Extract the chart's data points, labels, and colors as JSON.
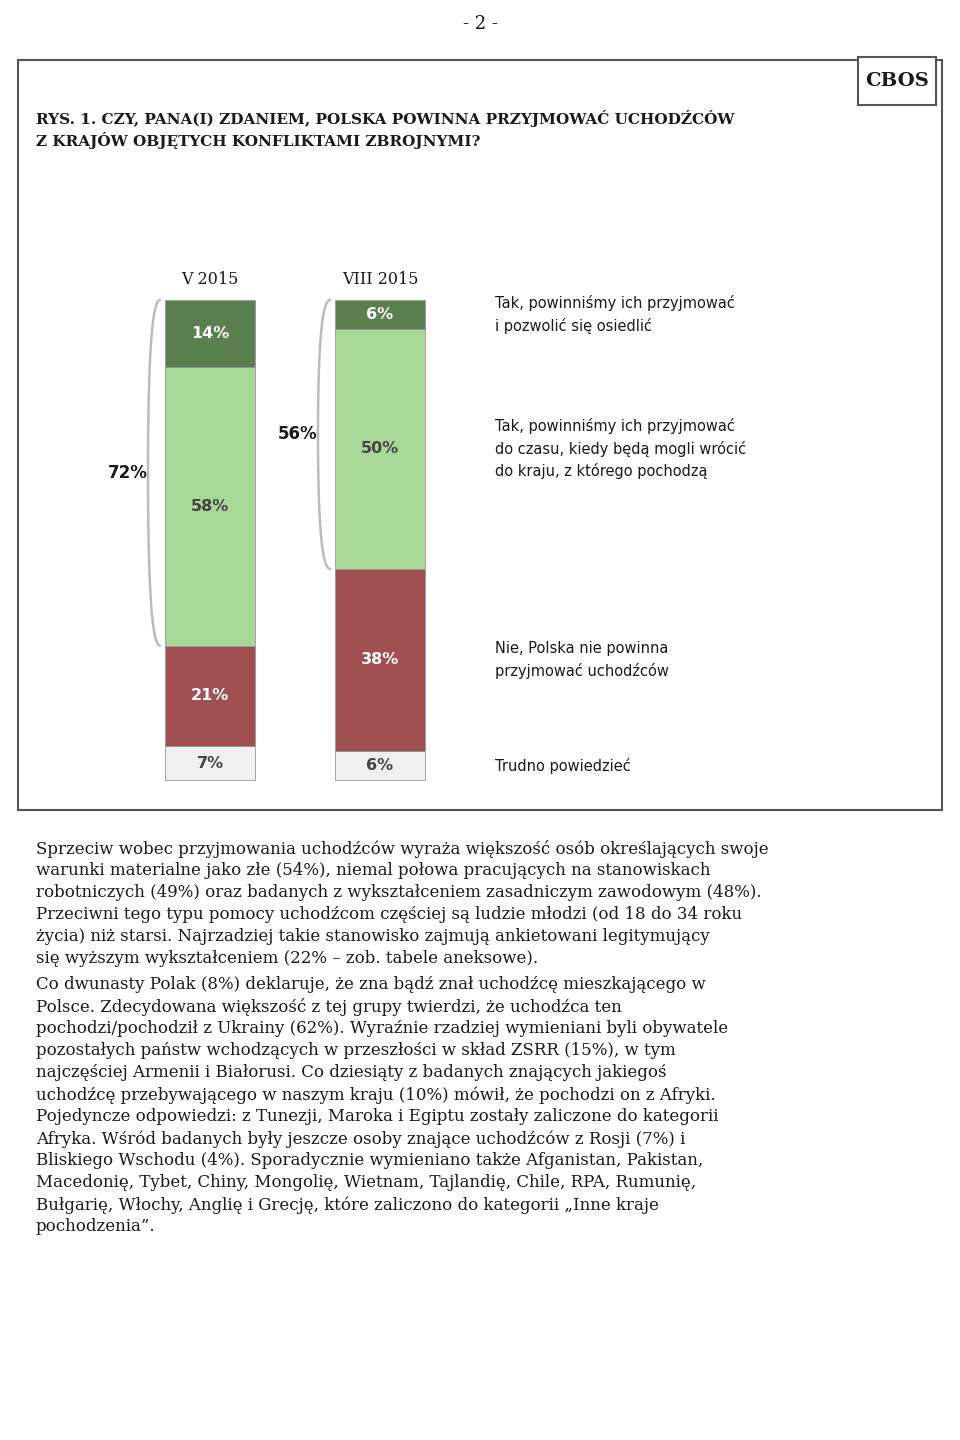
{
  "page_number": "- 2 -",
  "cbos_label": "CBOS",
  "chart_title_line1": "RYS. 1. CZY, PANA(I) ZDANIEM, POLSKA POWINNA PRZYJMOWAĆ UCHODŹCÓW",
  "chart_title_line2": "Z KRAJÓW OBJĘTYCH KONFLIKTAMI ZBROJNYMI?",
  "col1_label": "V 2015",
  "col2_label": "VIII 2015",
  "bars": {
    "v2015": {
      "hard_to_say": 7,
      "no": 21,
      "yes_temp": 58,
      "yes_settle": 14
    },
    "viii2015": {
      "hard_to_say": 6,
      "no": 38,
      "yes_temp": 50,
      "yes_settle": 6
    }
  },
  "bracket_labels": {
    "v2015_total_yes": "72%",
    "viii2015_total_yes": "56%"
  },
  "bar_colors": {
    "yes_settle": "#5a8050",
    "yes_temp": "#a8d898",
    "no": "#a05050",
    "hard_to_say": "#f0f0f0"
  },
  "legend_texts": [
    "Tak, powinniśmy ich przyjmować\ni pozwolić się osiedlić",
    "Tak, powinniśmy ich przyjmować\ndo czasu, kiedy będą mogli wrócić\ndo kraju, z którego pochodzą",
    "Nie, Polska nie powinna\nprzyjmować uchodźców",
    "Trudno powiedzieć"
  ],
  "paragraph1_indent": "    Sprzeciw wobec przyjmowania uchodźców wyraża większość osób określających swoje warunki materialne jako złe (54%), niemal połowa pracujących na stanowiskach robotniczych (49%) oraz badanych z wykształceniem zasadniczym zawodowym (48%). Przeciwni tego typu pomocy uchodźcom częściej są ludzie młodzi (od 18 do 34 roku życia) niż starsi. Najrzadziej takie stanowisko zajmują ankietowani legitymujący się wyższym wykształceniem (22% – zob. tabele aneksowe).",
  "paragraph2_indent": "    Co dwunasty Polak (8%) deklaruje, że zna bądź znał uchodźcę mieszkającego w Polsce. Zdecydowana większość z tej grupy twierdzi, że uchodźca ten pochodzi/pochodził z Ukrainy (62%). Wyraźnie rzadziej wymieniani byli obywatele pozostałych państw wchodzących w przeszłości w skład ZSRR (15%), w tym najczęściej Armenii i Białorusi. Co dziesiąty z badanych znających jakiegoś uchodźcę przebywającego w naszym kraju (10%) mówił, że pochodzi on z Afryki. Pojedyncze odpowiedzi: z Tunezji, Maroka i Egiptu zostały zaliczone do kategorii Afryka. Wśród badanych były jeszcze osoby znające uchodźców z Rosji (7%) i Bliskiego Wschodu (4%). Sporadycznie wymieniano także Afganistan, Pakistan, Macedonię, Tybet, Chiny, Mongolię, Wietnam, Tajlandię, Chile, RPA, Rumunię, Bułgarię, Włochy, Anglię i Grecję, które zaliczono do kategorii „Inne kraje pochodzenia”.",
  "background_color": "#ffffff",
  "text_color": "#1a1a1a",
  "border_color": "#555555"
}
